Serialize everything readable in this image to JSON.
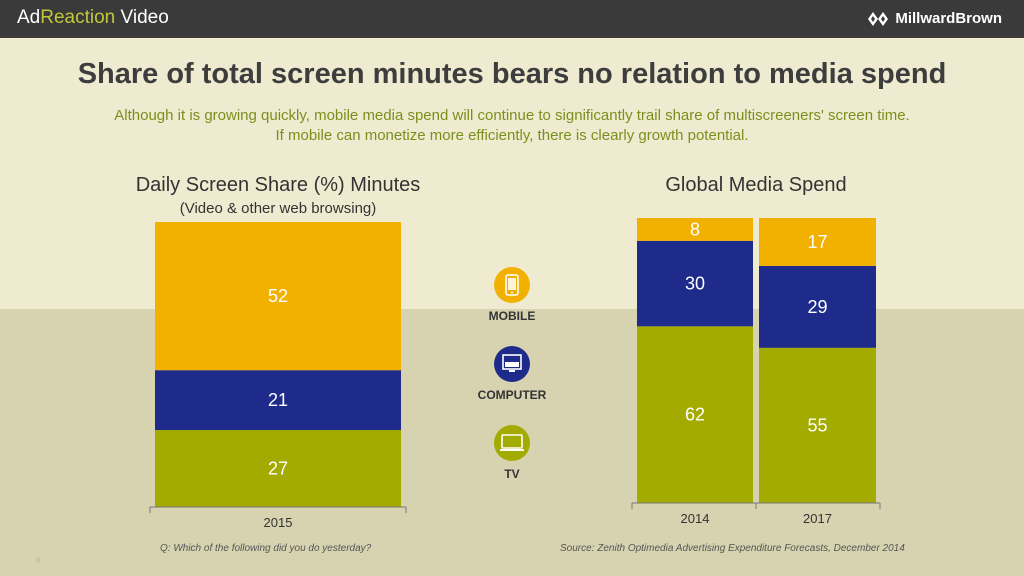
{
  "header": {
    "brand_left_a": "Ad",
    "brand_left_b": "Reaction",
    "brand_left_c": " Video",
    "brand_right": "MillwardBrown"
  },
  "title": "Share of total screen minutes bears no relation to media spend",
  "subtitle_line1": "Although it is growing quickly, mobile media spend will continue to significantly trail share of multiscreeners' screen time.",
  "subtitle_line2": "If mobile can monetize more efficiently, there is clearly growth potential.",
  "legend": [
    {
      "label": "MOBILE",
      "icon": "phone-icon",
      "color": "#f2b100"
    },
    {
      "label": "COMPUTER",
      "icon": "computer-icon",
      "color": "#1e2b8a"
    },
    {
      "label": "TV",
      "icon": "tv-icon",
      "color": "#a3ab00"
    }
  ],
  "footnote_left": "Q: Which of the following did you do yesterday?",
  "footnote_right": "Source: Zenith Optimedia Advertising Expenditure Forecasts, December 2014",
  "page_number": "8",
  "colors": {
    "mobile": "#f2b100",
    "computer": "#1e2b8a",
    "tv": "#a3ab00"
  },
  "chart_data": [
    {
      "type": "bar",
      "stacked": true,
      "title": "Daily Screen Share (%) Minutes",
      "subtitle": "(Video & other web browsing)",
      "categories": [
        "2015"
      ],
      "series": [
        {
          "name": "TV",
          "values": [
            27
          ]
        },
        {
          "name": "COMPUTER",
          "values": [
            21
          ]
        },
        {
          "name": "MOBILE",
          "values": [
            52
          ]
        }
      ]
    },
    {
      "type": "bar",
      "stacked": true,
      "title": "Global Media Spend",
      "categories": [
        "2014",
        "2017"
      ],
      "series": [
        {
          "name": "TV",
          "values": [
            62,
            55
          ]
        },
        {
          "name": "COMPUTER",
          "values": [
            30,
            29
          ]
        },
        {
          "name": "MOBILE",
          "values": [
            8,
            17
          ]
        }
      ]
    }
  ]
}
